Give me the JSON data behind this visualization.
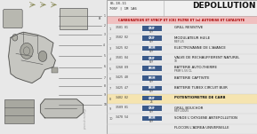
{
  "title_right": "DEPOLLUTION",
  "header_ref": "05.18.11",
  "header_ref2": "705F | 1M 1A6",
  "section_title": "CARBURATEUR ET SYNCP ET (CK) FILTRE ET (a) AUTORISE ET CATALYSTE",
  "rows": [
    {
      "num": "1",
      "ref": "3501 01",
      "code": "ORIF",
      "sub": "REF",
      "label": "GRILL RESISTIVE",
      "sub2": "",
      "highlight": false
    },
    {
      "num": "2",
      "ref": "3502 02",
      "code": "ORIF",
      "sub": "REF",
      "label": "MODULATEUR HUILE",
      "sub2": "REF LI5",
      "highlight": false
    },
    {
      "num": "3",
      "ref": "3425 02",
      "code": "PRIM",
      "sub": "REF",
      "label": "ELECTROVANNE DE L'AVANCE",
      "sub2": "",
      "highlight": false
    },
    {
      "num": "4",
      "ref": "3501 04",
      "code": "ORIF",
      "sub": "REF",
      "label": "VALVE DE RECHAUFFEMENT NATUREL",
      "sub2": "10",
      "highlight": false
    },
    {
      "num": "5",
      "ref": "3260 09",
      "code": "PRIM",
      "sub": "",
      "label": "BATTERIE AUTO-THERME",
      "sub2": "PRIM 5.5V CL",
      "highlight": false
    },
    {
      "num": "6",
      "ref": "3425 40",
      "code": "PRIM",
      "sub": "REF",
      "label": "BATTERIE CAPTIVITE",
      "sub2": "",
      "highlight": false
    },
    {
      "num": "7",
      "ref": "3425 47",
      "code": "PRIM",
      "sub": "REF",
      "label": "BATTERIE TUBEX CIRCUIT BUIR",
      "sub2": "",
      "highlight": false
    },
    {
      "num": "8",
      "ref": "3402 02",
      "code": "ORIF",
      "sub": "26",
      "label": "POTENTIOMETRE DE CARB",
      "sub2": "",
      "highlight": true
    },
    {
      "num": "9",
      "ref": "3509 01",
      "code": "ORIF",
      "sub": "REF",
      "label": "GRILL BOUCHOR",
      "sub2": "REF LIOUI5",
      "highlight": false
    },
    {
      "num": "10",
      "ref": "3478 54",
      "code": "PRIM",
      "sub": "REF",
      "label": "SONDE L'OXYGENE ANTEPOLLUTION",
      "sub2": "",
      "highlight": false
    },
    {
      "num": "",
      "ref": "",
      "code": "",
      "sub": "",
      "label": "FLOCON L'ADREA UNIVERSELLE",
      "sub2": "",
      "highlight": false
    }
  ],
  "bg_color": "#e8e8e8",
  "table_bg": "#ffffff",
  "highlight_color": "#f5e4b0",
  "section_header_color": "#f0c0c0",
  "left_bg": "#d8d8d0",
  "code_blue": "#3a5a8a",
  "figsize": [
    2.89,
    1.51
  ],
  "dpi": 100
}
